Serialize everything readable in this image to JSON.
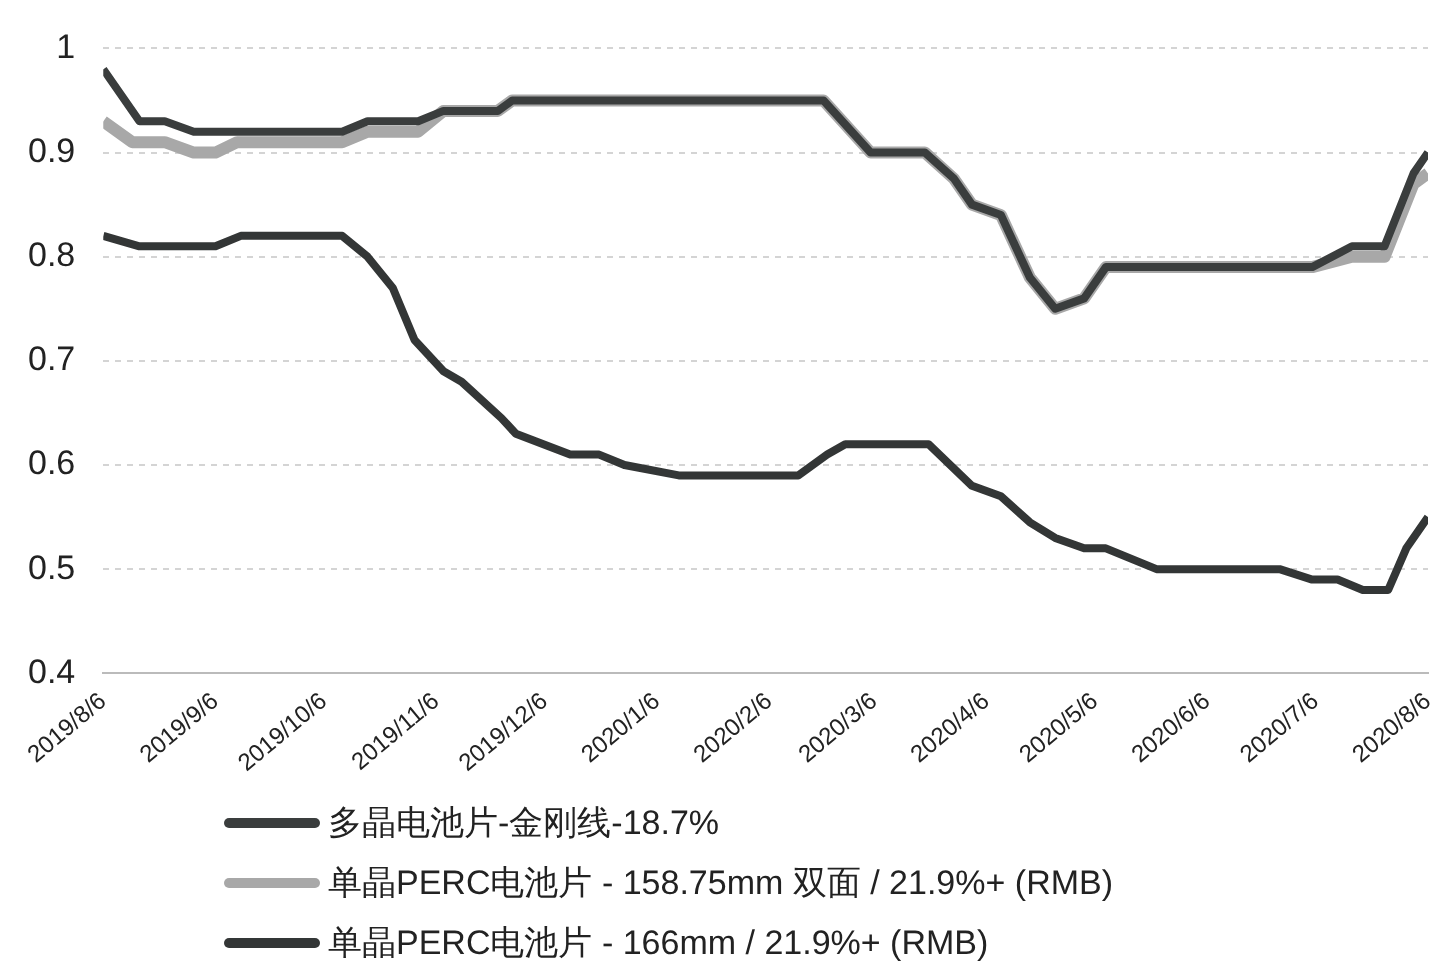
{
  "chart_data": {
    "type": "line",
    "xlim": [
      "2019-08-06",
      "2020-08-06"
    ],
    "xticks": [
      {
        "value": "2019-08-06",
        "label": "2019/8/6"
      },
      {
        "value": "2019-09-06",
        "label": "2019/9/6"
      },
      {
        "value": "2019-10-06",
        "label": "2019/10/6"
      },
      {
        "value": "2019-11-06",
        "label": "2019/11/6"
      },
      {
        "value": "2019-12-06",
        "label": "2019/12/6"
      },
      {
        "value": "2020-01-06",
        "label": "2020/1/6"
      },
      {
        "value": "2020-02-06",
        "label": "2020/2/6"
      },
      {
        "value": "2020-03-06",
        "label": "2020/3/6"
      },
      {
        "value": "2020-04-06",
        "label": "2020/4/6"
      },
      {
        "value": "2020-05-06",
        "label": "2020/5/6"
      },
      {
        "value": "2020-06-06",
        "label": "2020/6/6"
      },
      {
        "value": "2020-07-06",
        "label": "2020/7/6"
      },
      {
        "value": "2020-08-06",
        "label": "2020/8/6"
      }
    ],
    "ylim": [
      0.4,
      1
    ],
    "yticks": [
      0.4,
      0.5,
      0.6,
      0.7,
      0.8,
      0.9,
      1
    ],
    "grid": "y",
    "legend": "bottom",
    "marker": "none",
    "line_style": "solid",
    "series": [
      {
        "name": "多晶电池片-金刚线-18.7%",
        "color": "#3a3d3d",
        "x": [
          "2019-08-06",
          "2019-08-16",
          "2019-08-23",
          "2019-08-31",
          "2019-10-11",
          "2019-10-18",
          "2019-11-01",
          "2019-11-08",
          "2019-11-23",
          "2019-11-27",
          "2020-02-21",
          "2020-03-05",
          "2020-03-20",
          "2020-03-28",
          "2020-04-02",
          "2020-04-10",
          "2020-04-18",
          "2020-04-25",
          "2020-05-03",
          "2020-05-09",
          "2020-07-05",
          "2020-07-16",
          "2020-07-25",
          "2020-08-02",
          "2020-08-06"
        ],
        "values": [
          0.98,
          0.93,
          0.93,
          0.92,
          0.92,
          0.93,
          0.93,
          0.94,
          0.94,
          0.95,
          0.95,
          0.9,
          0.9,
          0.875,
          0.85,
          0.84,
          0.78,
          0.75,
          0.76,
          0.79,
          0.79,
          0.81,
          0.81,
          0.88,
          0.9
        ]
      },
      {
        "name": "单晶PERC电池片 - 158.75mm 双面 / 21.9%+ (RMB)",
        "color": "#a8a8a8",
        "x": [
          "2019-08-06",
          "2019-08-14",
          "2019-08-23",
          "2019-08-31",
          "2019-09-06",
          "2019-09-12",
          "2019-10-11",
          "2019-10-18",
          "2019-11-01",
          "2019-11-08",
          "2019-11-23",
          "2019-11-27",
          "2020-02-21",
          "2020-03-05",
          "2020-03-20",
          "2020-03-28",
          "2020-04-02",
          "2020-04-10",
          "2020-04-18",
          "2020-04-25",
          "2020-05-03",
          "2020-05-09",
          "2020-07-05",
          "2020-07-16",
          "2020-07-25",
          "2020-08-02",
          "2020-08-06"
        ],
        "values": [
          0.93,
          0.91,
          0.91,
          0.9,
          0.9,
          0.91,
          0.91,
          0.92,
          0.92,
          0.94,
          0.94,
          0.95,
          0.95,
          0.9,
          0.9,
          0.875,
          0.85,
          0.84,
          0.78,
          0.75,
          0.76,
          0.79,
          0.79,
          0.8,
          0.8,
          0.87,
          0.88
        ]
      },
      {
        "name": "单晶PERC电池片 - 166mm / 21.9%+ (RMB)",
        "color": "#333636",
        "x": [
          "2019-08-06",
          "2019-08-16",
          "2019-09-06",
          "2019-09-13",
          "2019-10-11",
          "2019-10-18",
          "2019-10-25",
          "2019-10-31",
          "2019-11-08",
          "2019-11-13",
          "2019-11-24",
          "2019-11-28",
          "2019-12-13",
          "2019-12-21",
          "2019-12-28",
          "2020-01-12",
          "2020-02-07",
          "2020-02-14",
          "2020-02-22",
          "2020-02-27",
          "2020-03-21",
          "2020-04-02",
          "2020-04-10",
          "2020-04-18",
          "2020-04-25",
          "2020-05-03",
          "2020-05-09",
          "2020-05-23",
          "2020-06-26",
          "2020-07-05",
          "2020-07-12",
          "2020-07-19",
          "2020-07-26",
          "2020-07-31",
          "2020-08-06"
        ],
        "values": [
          0.82,
          0.81,
          0.81,
          0.82,
          0.82,
          0.8,
          0.77,
          0.72,
          0.69,
          0.68,
          0.645,
          0.63,
          0.61,
          0.61,
          0.6,
          0.59,
          0.59,
          0.59,
          0.61,
          0.62,
          0.62,
          0.58,
          0.57,
          0.545,
          0.53,
          0.52,
          0.52,
          0.5,
          0.5,
          0.49,
          0.49,
          0.48,
          0.48,
          0.52,
          0.55
        ]
      }
    ]
  }
}
